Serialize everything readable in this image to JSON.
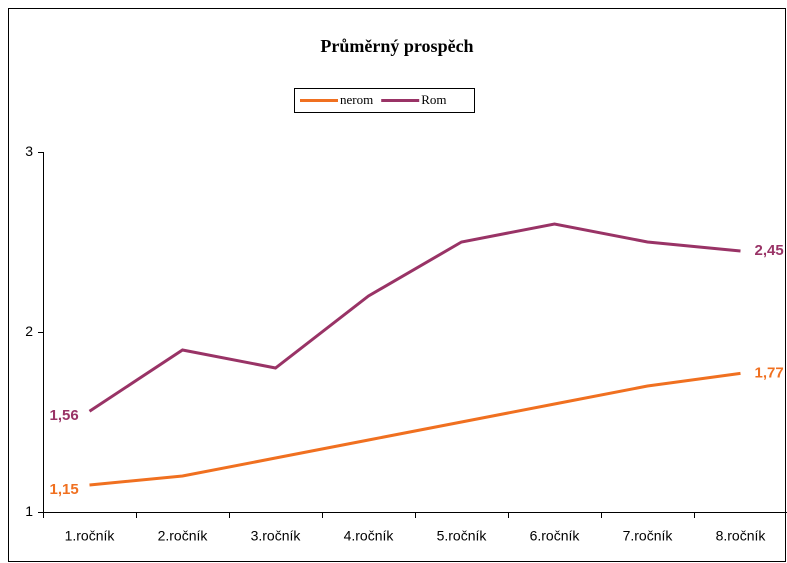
{
  "chart_data": {
    "type": "line",
    "title": "Průměrný prospěch",
    "categories": [
      "1.ročník",
      "2.ročník",
      "3.ročník",
      "4.ročník",
      "5.ročník",
      "6.ročník",
      "7.ročník",
      "8.ročník"
    ],
    "series": [
      {
        "name": "nerom",
        "color": "#f07020",
        "values": [
          1.15,
          1.2,
          1.3,
          1.4,
          1.5,
          1.6,
          1.7,
          1.77
        ],
        "value_labels": [
          "1,15",
          null,
          null,
          null,
          null,
          null,
          null,
          "1,77"
        ]
      },
      {
        "name": "Rom",
        "color": "#993366",
        "values": [
          1.56,
          1.9,
          1.8,
          2.2,
          2.5,
          2.6,
          2.5,
          2.45
        ],
        "value_labels": [
          "1,56",
          null,
          null,
          null,
          null,
          null,
          null,
          "2,45"
        ]
      }
    ],
    "ylim": [
      1,
      3
    ],
    "yticks": [
      1,
      2,
      3
    ],
    "grid": false,
    "legend": "top"
  }
}
